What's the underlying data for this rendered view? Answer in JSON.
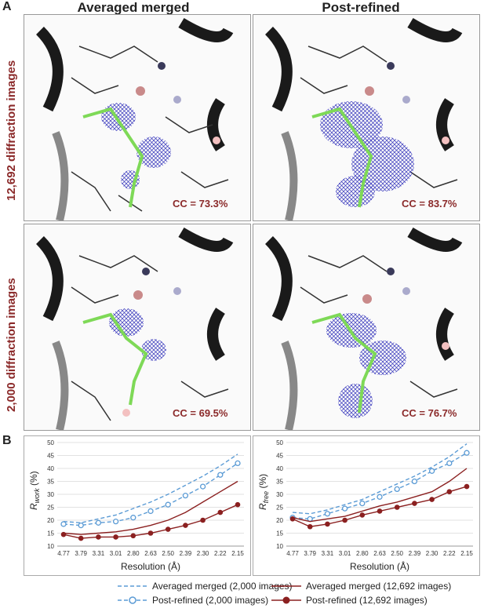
{
  "panel_a_label": "A",
  "panel_b_label": "B",
  "columns": [
    "Averaged merged",
    "Post-refined"
  ],
  "rows": [
    "12,692 diffraction images",
    "2,000 diffraction images"
  ],
  "cc_values": {
    "r1c1": "CC = 73.3%",
    "r1c2": "CC = 83.7%",
    "r2c1": "CC = 69.5%",
    "r2c2": "CC = 76.7%"
  },
  "colors": {
    "mesh": "#3333bb",
    "ligand": "#7ed957",
    "ribbon": "#1a1a1a",
    "accent_text": "#8b2a2a",
    "series_blue": "#5b9bd5",
    "series_red": "#8b2020"
  },
  "chart_data": [
    {
      "type": "line",
      "ylabel_main": "R",
      "ylabel_sub": "work",
      "ylabel_unit": " (%)",
      "xlabel": "Resolution (Å)",
      "categories": [
        "4.77",
        "3.79",
        "3.31",
        "3.01",
        "2.80",
        "2.63",
        "2.50",
        "2.39",
        "2.30",
        "2.22",
        "2.15"
      ],
      "ylim": [
        10,
        50
      ],
      "yticks": [
        "10",
        "15",
        "20",
        "25",
        "30",
        "35",
        "40",
        "45",
        "50"
      ],
      "grid": true,
      "series": [
        {
          "name": "Averaged merged (2,000 images)",
          "values": [
            19.5,
            19.0,
            20.5,
            22.0,
            24.5,
            27.0,
            30.0,
            33.5,
            37.0,
            41.0,
            45.5
          ]
        },
        {
          "name": "Post-refined (2,000 images)",
          "values": [
            18.5,
            18.0,
            19.0,
            19.5,
            21.0,
            23.5,
            26.0,
            29.5,
            33.0,
            37.5,
            42.0
          ]
        },
        {
          "name": "Averaged merged (12,692 images)",
          "values": [
            15.0,
            14.5,
            15.0,
            15.5,
            16.5,
            18.0,
            20.0,
            23.0,
            27.0,
            31.0,
            35.0
          ]
        },
        {
          "name": "Post-refined (12,692 images)",
          "values": [
            14.5,
            13.0,
            13.5,
            13.5,
            14.0,
            15.0,
            16.5,
            18.0,
            20.0,
            23.0,
            26.0
          ]
        }
      ]
    },
    {
      "type": "line",
      "ylabel_main": "R",
      "ylabel_sub": "free",
      "ylabel_unit": " (%)",
      "xlabel": "Resolution (Å)",
      "categories": [
        "4.77",
        "3.79",
        "3.31",
        "3.01",
        "2.80",
        "2.63",
        "2.50",
        "2.39",
        "2.30",
        "2.22",
        "2.15"
      ],
      "ylim": [
        10,
        50
      ],
      "yticks": [
        "10",
        "15",
        "20",
        "25",
        "30",
        "35",
        "40",
        "45",
        "50"
      ],
      "grid": true,
      "series": [
        {
          "name": "Averaged merged (2,000 images)",
          "values": [
            23.0,
            22.5,
            24.0,
            26.0,
            28.0,
            31.0,
            34.0,
            37.0,
            40.5,
            44.5,
            49.5
          ]
        },
        {
          "name": "Post-refined (2,000 images)",
          "values": [
            21.0,
            20.5,
            22.5,
            24.5,
            26.5,
            29.0,
            32.0,
            35.0,
            39.0,
            42.0,
            46.0
          ]
        },
        {
          "name": "Averaged merged (12,692 images)",
          "values": [
            21.0,
            19.5,
            20.5,
            21.5,
            23.5,
            25.5,
            27.0,
            29.0,
            31.0,
            35.0,
            40.0
          ]
        },
        {
          "name": "Post-refined (12,692 images)",
          "values": [
            20.5,
            17.5,
            18.5,
            20.0,
            22.0,
            23.5,
            25.0,
            26.5,
            28.0,
            31.0,
            33.0
          ]
        }
      ]
    }
  ],
  "legend": [
    "Averaged merged (2,000 images)",
    "Post-refined (2,000 images)",
    "Averaged merged (12,692 images)",
    "Post-refined (12,692 images)"
  ]
}
